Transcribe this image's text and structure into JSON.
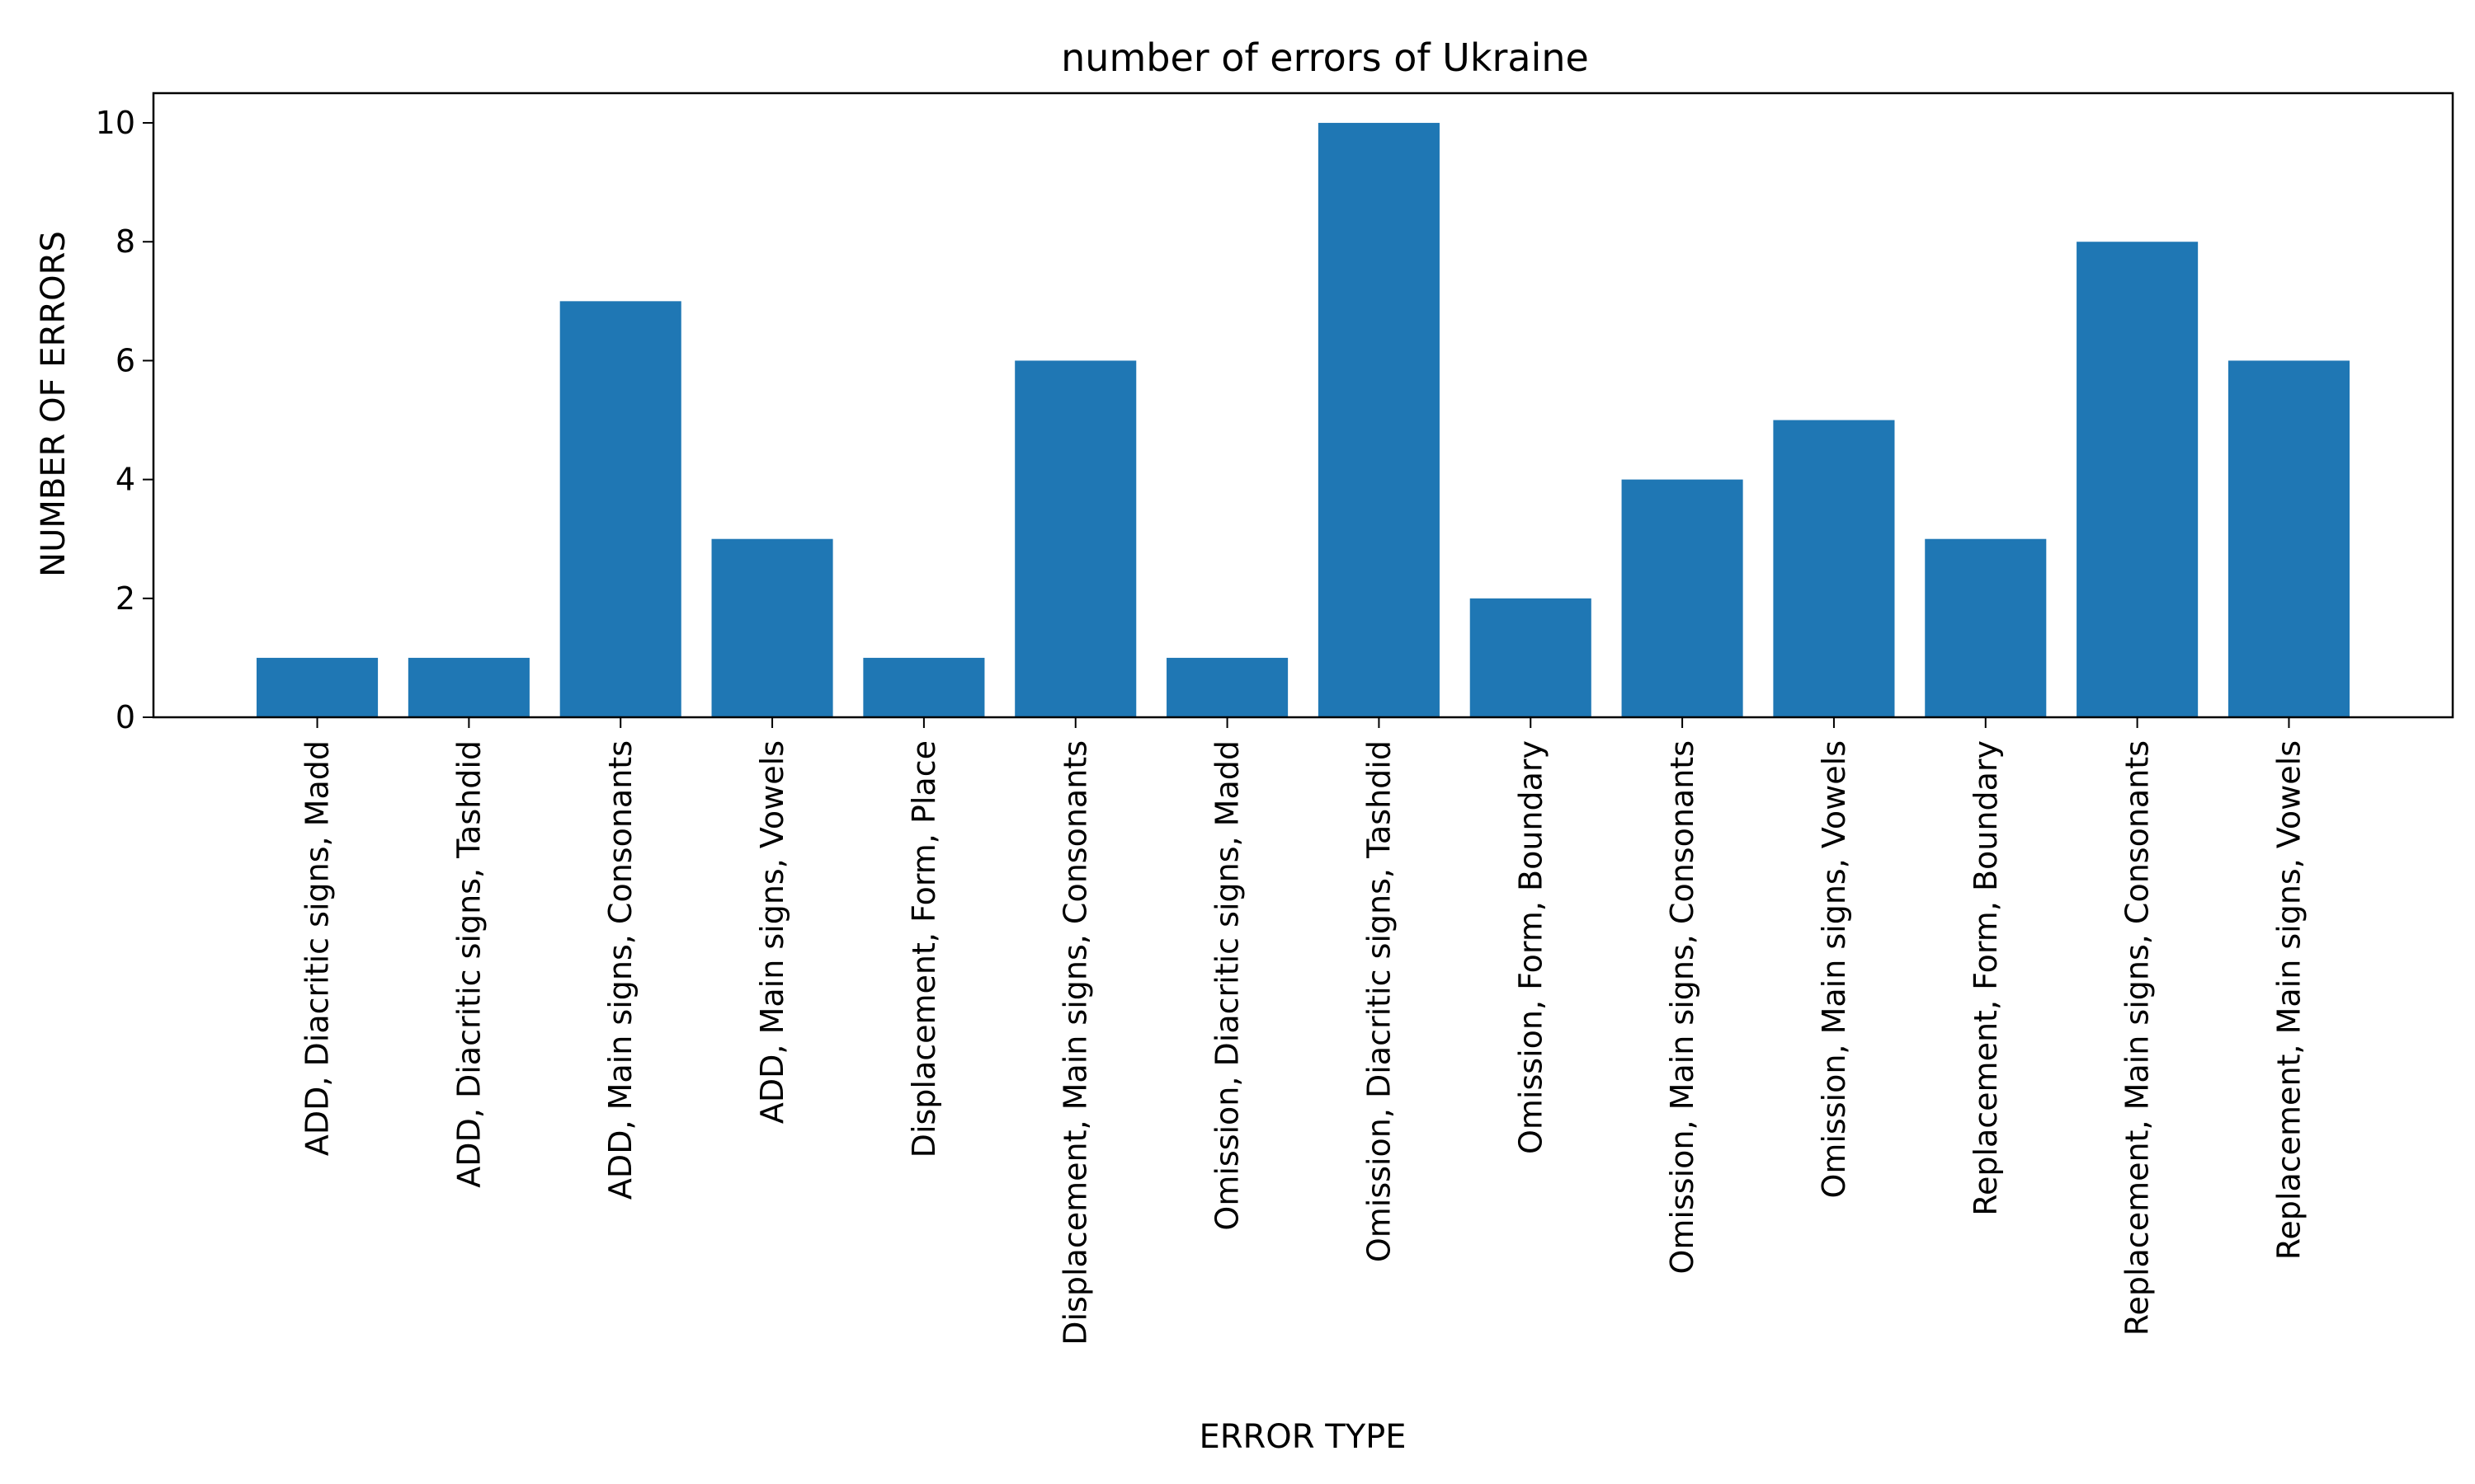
{
  "chart_data": {
    "type": "bar",
    "title": "number of errors of Ukraine",
    "xlabel": "ERROR TYPE",
    "ylabel": "NUMBER OF ERRORS",
    "categories": [
      "ADD, Diacritic signs, Madd",
      "ADD, Diacritic signs, Tashdid",
      "ADD, Main signs, Consonants",
      "ADD, Main signs, Vowels",
      "Displacement, Form, Place",
      "Displacement, Main signs, Consonants",
      "Omission, Diacritic signs, Madd",
      "Omission, Diacritic signs, Tashdid",
      "Omission, Form, Boundary",
      "Omission, Main signs, Consonants",
      "Omission, Main signs, Vowels",
      "Replacement, Form, Boundary",
      "Replacement, Main signs, Consonants",
      "Replacement, Main signs, Vowels"
    ],
    "values": [
      1,
      1,
      7,
      3,
      1,
      6,
      1,
      10,
      2,
      4,
      5,
      3,
      8,
      6
    ],
    "ylim": [
      0,
      10.5
    ],
    "yticks": [
      "0",
      "2",
      "4",
      "6",
      "8",
      "10"
    ],
    "bar_color": "#1f77b4",
    "grid": false,
    "legend": "none"
  }
}
